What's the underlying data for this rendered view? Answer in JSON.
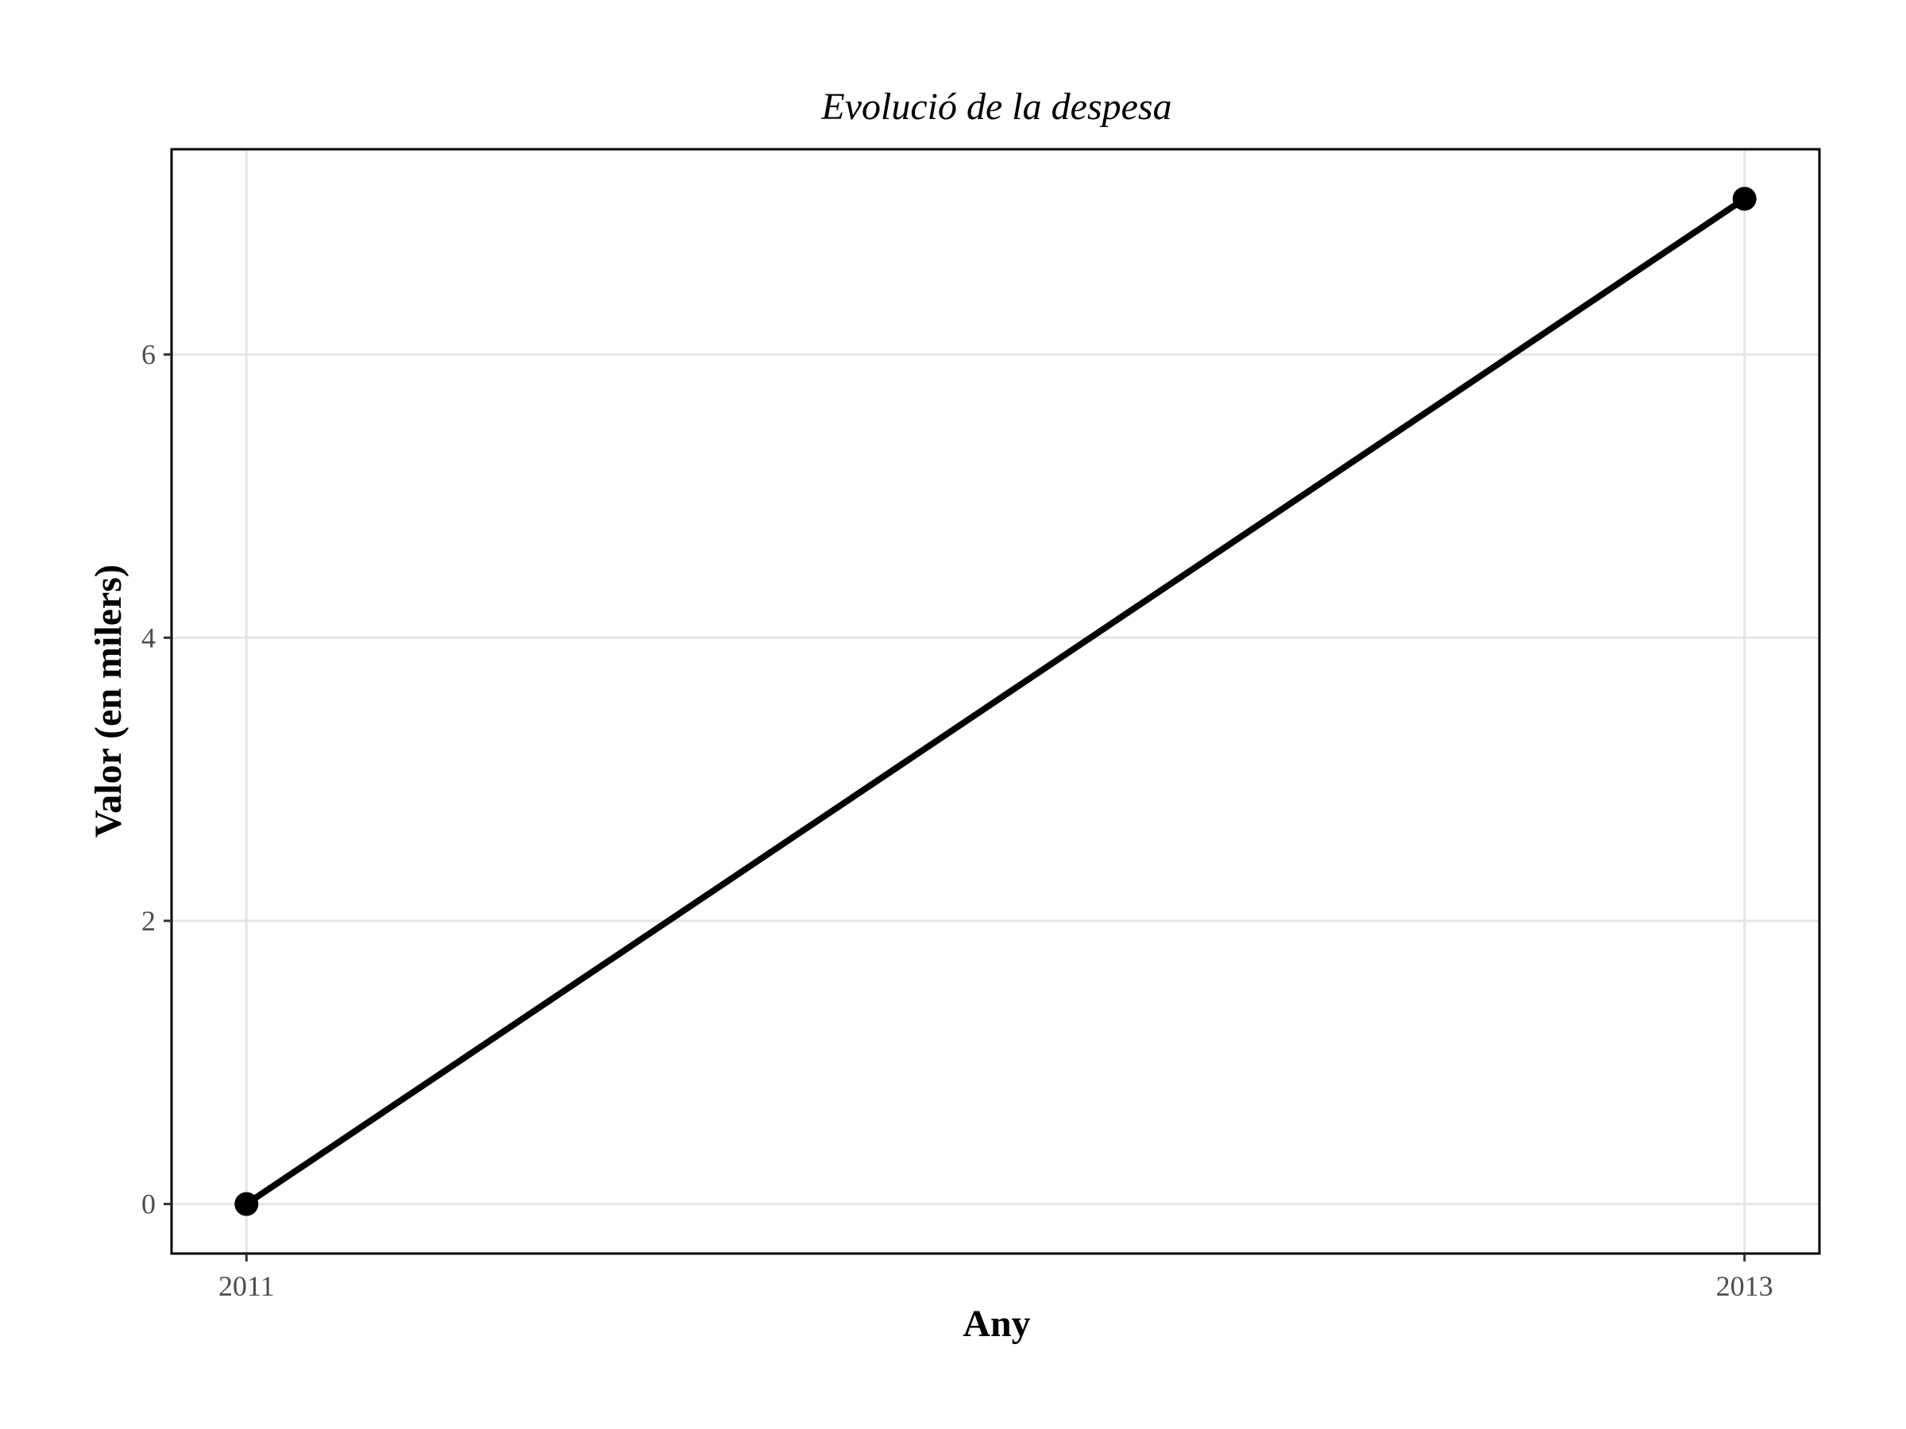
{
  "chart_data": {
    "type": "line",
    "title": "Evolució de la despesa",
    "xlabel": "Any",
    "ylabel": "Valor (en milers)",
    "x": [
      2011,
      2013
    ],
    "y": [
      0,
      7.1
    ],
    "xlim": [
      2010.9,
      2013.1
    ],
    "ylim": [
      -0.35,
      7.45
    ],
    "x_ticks": [
      2011,
      2013
    ],
    "x_tick_labels": [
      "2011",
      "2013"
    ],
    "y_ticks": [
      0,
      2,
      4,
      6
    ],
    "y_tick_labels": [
      "0",
      "2",
      "4",
      "6"
    ],
    "grid": true,
    "legend": "none",
    "colors": {
      "line": "#000000",
      "grid": "#e5e5e5",
      "border": "#000000",
      "tick_text": "#4d4d4d"
    }
  }
}
